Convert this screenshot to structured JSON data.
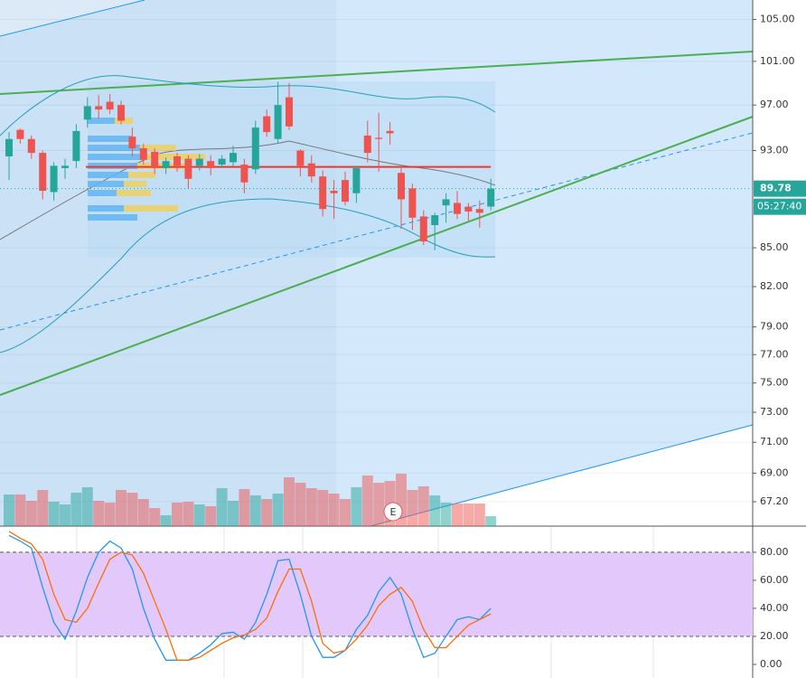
{
  "chart_data": [
    {
      "type": "candlestick",
      "log": true,
      "grid": true,
      "ylim": [
        65.7,
        106.9
      ],
      "yticks": [
        {
          "value": 105,
          "label": "105.00"
        },
        {
          "value": 101,
          "label": "101.00"
        },
        {
          "value": 97,
          "label": "97.00"
        },
        {
          "value": 93,
          "label": "93.00"
        },
        {
          "value": 85,
          "label": "85.00"
        },
        {
          "value": 82,
          "label": "82.00"
        },
        {
          "value": 79,
          "label": "79.00"
        },
        {
          "value": 77,
          "label": "77.00"
        },
        {
          "value": 75,
          "label": "75.00"
        },
        {
          "value": 73,
          "label": "73.00"
        },
        {
          "value": 71,
          "label": "71.00"
        },
        {
          "value": 69,
          "label": "69.00"
        },
        {
          "value": 67.2,
          "label": "67.20"
        }
      ],
      "up_color": "#26a69a",
      "down_color": "#ef5350",
      "open": [
        92.5,
        94.8,
        94.0,
        92.8,
        89.5,
        91.5,
        92.1,
        95.7,
        96.9,
        97.3,
        97.0,
        94.2,
        93.2,
        92.9,
        91.5,
        92.5,
        92.3,
        91.7,
        92.1,
        91.8,
        92.0,
        91.8,
        91.4,
        96.0,
        94.0,
        97.7,
        93.0,
        91.9,
        90.8,
        89.6,
        90.5,
        89.4,
        94.3,
        94.1,
        94.7,
        91.1,
        89.8,
        87.5,
        86.8,
        88.4,
        88.6,
        88.3,
        88.1,
        88.3
      ],
      "high": [
        94.6,
        94.9,
        94.3,
        93.0,
        92.0,
        92.3,
        95.3,
        97.7,
        97.9,
        98.0,
        97.4,
        95.0,
        93.6,
        93.2,
        92.4,
        92.8,
        92.6,
        92.7,
        92.6,
        92.6,
        93.4,
        92.3,
        95.6,
        96.6,
        99.1,
        99.0,
        93.1,
        92.6,
        91.3,
        90.5,
        91.2,
        91.7,
        95.6,
        96.3,
        95.5,
        91.5,
        90.2,
        88.0,
        87.8,
        89.4,
        89.6,
        88.6,
        88.8,
        90.6
      ],
      "low": [
        90.5,
        93.6,
        92.3,
        88.9,
        88.8,
        90.6,
        91.5,
        95.0,
        95.8,
        96.2,
        95.3,
        92.5,
        91.8,
        91.0,
        91.0,
        91.2,
        89.8,
        91.3,
        90.9,
        91.5,
        91.7,
        89.4,
        91.0,
        94.2,
        93.6,
        94.8,
        90.8,
        90.3,
        87.5,
        87.3,
        88.4,
        88.6,
        92.0,
        91.2,
        93.5,
        86.5,
        86.4,
        85.2,
        84.8,
        87.0,
        87.3,
        87.1,
        86.6,
        88.0
      ],
      "close": [
        94.0,
        94.0,
        92.8,
        89.6,
        91.7,
        91.7,
        94.7,
        96.9,
        96.6,
        96.6,
        95.6,
        93.2,
        92.2,
        91.5,
        92.1,
        91.7,
        90.6,
        92.3,
        91.5,
        92.3,
        92.8,
        90.3,
        95.0,
        94.6,
        97.0,
        95.1,
        91.7,
        90.8,
        88.1,
        89.4,
        88.7,
        91.5,
        92.8,
        94.0,
        94.5,
        88.9,
        87.4,
        85.5,
        87.6,
        88.9,
        87.7,
        87.9,
        87.8,
        89.78
      ],
      "volume": [
        35,
        35,
        28,
        40,
        27,
        24,
        37,
        43,
        28,
        26,
        40,
        37,
        30,
        20,
        12,
        26,
        27,
        24,
        22,
        42,
        28,
        41,
        34,
        30,
        36,
        54,
        48,
        42,
        40,
        36,
        30,
        43,
        56,
        48,
        50,
        58,
        40,
        44,
        34,
        26,
        25,
        25,
        25,
        11
      ],
      "level": 91.6,
      "last_price": 89.78,
      "countdown": "05:27:40",
      "marker": "E"
    },
    {
      "type": "line",
      "grid": true,
      "ylim": [
        -9.7,
        98
      ],
      "yticks": [
        {
          "value": 0,
          "label": "0.00"
        },
        {
          "value": 20,
          "label": "20.00"
        },
        {
          "value": 40,
          "label": "40.00"
        },
        {
          "value": 60,
          "label": "60.00"
        },
        {
          "value": 80,
          "label": "80.00"
        }
      ],
      "band": [
        20,
        80
      ],
      "band_color": "#e3c9fb",
      "series": [
        {
          "color": "#2196f3",
          "values": [
            92,
            88,
            83,
            55,
            30,
            18,
            38,
            62,
            80,
            88,
            83,
            68,
            40,
            18,
            3,
            3,
            3,
            8,
            14,
            22,
            23,
            18,
            30,
            50,
            74,
            75,
            50,
            20,
            5,
            5,
            10,
            25,
            35,
            52,
            62,
            50,
            25,
            5,
            8,
            20,
            32,
            34,
            32,
            40
          ]
        },
        {
          "color": "#ff6d00",
          "values": [
            95,
            90,
            86,
            75,
            50,
            32,
            30,
            40,
            58,
            75,
            80,
            78,
            65,
            45,
            25,
            3,
            3,
            5,
            10,
            15,
            19,
            21,
            25,
            33,
            52,
            68,
            68,
            45,
            15,
            8,
            10,
            18,
            28,
            42,
            50,
            55,
            45,
            25,
            12,
            12,
            20,
            28,
            32,
            36
          ]
        }
      ]
    }
  ]
}
